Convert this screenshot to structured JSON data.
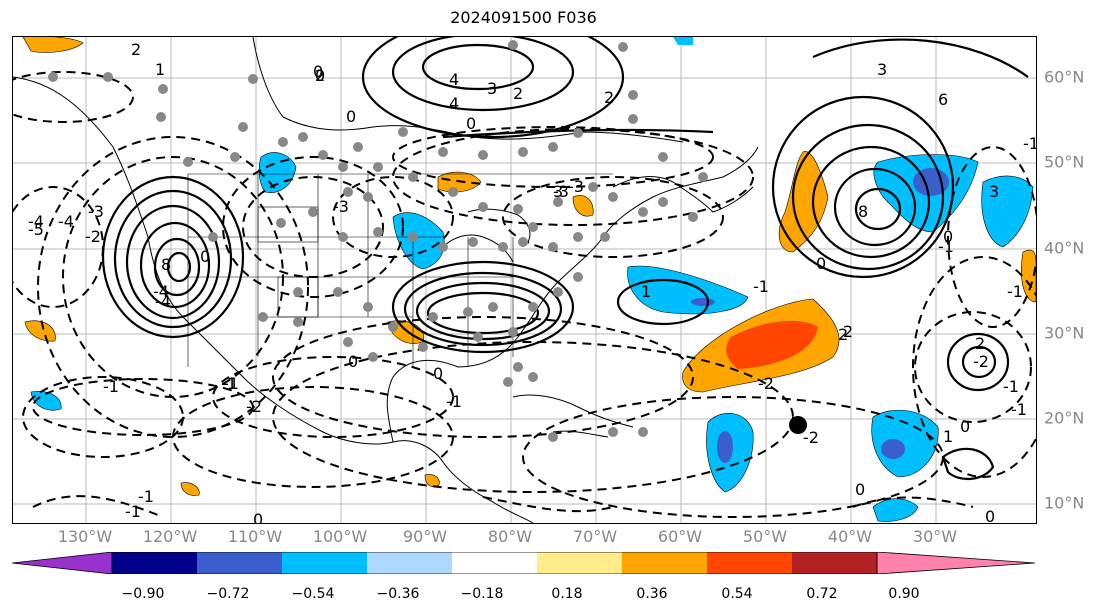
{
  "title": "2024091500 F036",
  "lon_labels": [
    "130°W",
    "120°W",
    "110°W",
    "100°W",
    "90°W",
    "80°W",
    "70°W",
    "60°W",
    "50°W",
    "40°W",
    "30°W"
  ],
  "lat_labels": [
    "60°N",
    "50°N",
    "40°N",
    "30°N",
    "20°N",
    "10°N"
  ],
  "colorbar": {
    "ticks": [
      "−0.90",
      "−0.72",
      "−0.54",
      "−0.36",
      "−0.18",
      "0.18",
      "0.36",
      "0.54",
      "0.72",
      "0.90"
    ],
    "colors": [
      "#9932cc",
      "#00008b",
      "#3a5fcd",
      "#00bfff",
      "#add8ff",
      "#ffffff",
      "#ffec8b",
      "#ffa500",
      "#ff4500",
      "#b22222",
      "#ff82ab"
    ]
  },
  "contour_labels": [
    "2",
    "1",
    "0",
    "4",
    "3",
    "2",
    "0",
    "6",
    "3",
    "4",
    "0",
    "2",
    "3",
    "8",
    "3",
    "-1",
    "0",
    "2",
    "8",
    "0",
    "-4",
    "-5",
    "-4",
    "-3",
    "-2",
    "-1",
    "0",
    "-3",
    "-3",
    "-1",
    "-1",
    "-2",
    "-1",
    "1",
    "-2",
    "0",
    "-1",
    "0",
    "-1",
    "-2",
    "-1",
    "2",
    "2",
    "-2",
    "0",
    "1",
    "0",
    "-1",
    "0",
    "-1",
    "-1",
    "2",
    "0",
    "-3",
    "-4",
    "-1",
    "0",
    "-4"
  ]
}
